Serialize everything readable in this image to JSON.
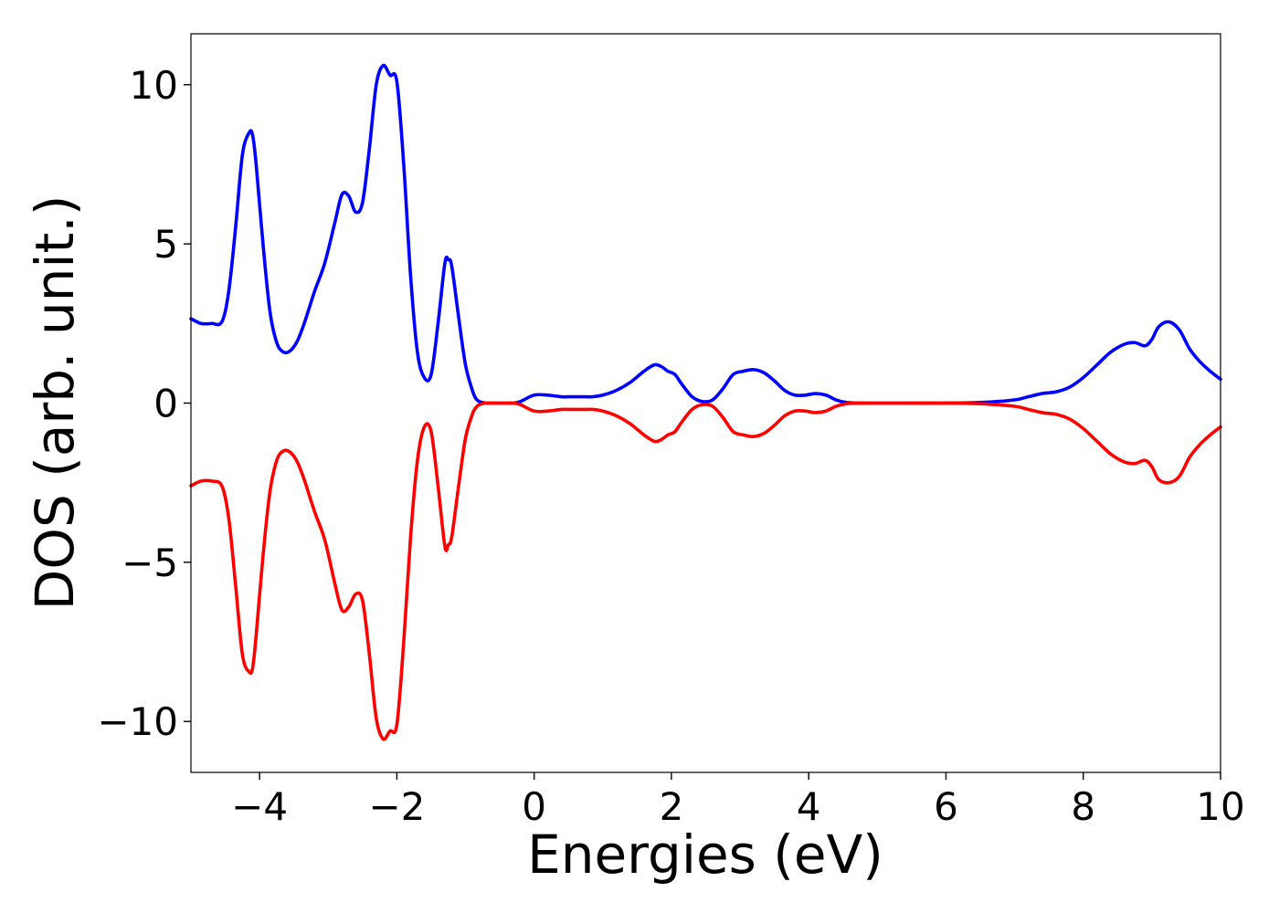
{
  "chart_data": {
    "type": "line",
    "title": "",
    "xlabel": "Energies (eV)",
    "ylabel": "DOS (arb. unit.)",
    "xlim": [
      -5,
      10
    ],
    "ylim": [
      -11.6,
      11.6
    ],
    "xticks": [
      -4,
      -2,
      0,
      2,
      4,
      6,
      8,
      10
    ],
    "xtick_labels": [
      "−4",
      "−2",
      "0",
      "2",
      "4",
      "6",
      "8",
      "10"
    ],
    "yticks": [
      -10,
      -5,
      0,
      5,
      10
    ],
    "ytick_labels": [
      "−10",
      "−5",
      "0",
      "5",
      "10"
    ],
    "grid": false,
    "legend": "none",
    "series": [
      {
        "color": "#0000ff",
        "x": [
          -5.0,
          -4.85,
          -4.7,
          -4.55,
          -4.45,
          -4.35,
          -4.25,
          -4.15,
          -4.1,
          -4.05,
          -3.95,
          -3.85,
          -3.75,
          -3.65,
          -3.55,
          -3.45,
          -3.35,
          -3.2,
          -3.05,
          -2.9,
          -2.8,
          -2.7,
          -2.6,
          -2.5,
          -2.4,
          -2.3,
          -2.2,
          -2.1,
          -2.0,
          -1.9,
          -1.8,
          -1.7,
          -1.6,
          -1.5,
          -1.4,
          -1.3,
          -1.25,
          -1.2,
          -1.1,
          -1.0,
          -0.9,
          -0.85,
          -0.8,
          -0.7,
          -0.6,
          -0.5,
          -0.4,
          -0.3,
          -0.2,
          0.0,
          0.2,
          0.4,
          0.55,
          0.7,
          0.85,
          1.0,
          1.2,
          1.4,
          1.6,
          1.75,
          1.85,
          1.95,
          2.05,
          2.15,
          2.3,
          2.45,
          2.6,
          2.75,
          2.9,
          3.05,
          3.2,
          3.35,
          3.5,
          3.65,
          3.8,
          3.95,
          4.1,
          4.25,
          4.4,
          4.55,
          4.7,
          4.85,
          5.0,
          5.5,
          6.0,
          6.5,
          7.0,
          7.2,
          7.4,
          7.6,
          7.8,
          8.0,
          8.2,
          8.4,
          8.6,
          8.75,
          8.9,
          9.0,
          9.1,
          9.25,
          9.4,
          9.55,
          9.7,
          9.85,
          10.0
        ],
        "y": [
          2.65,
          2.5,
          2.5,
          2.55,
          3.5,
          5.5,
          7.8,
          8.5,
          8.4,
          7.5,
          5.0,
          2.9,
          1.9,
          1.6,
          1.65,
          1.95,
          2.5,
          3.5,
          4.4,
          5.7,
          6.55,
          6.5,
          6.0,
          6.3,
          8.0,
          10.0,
          10.6,
          10.3,
          10.1,
          7.5,
          4.0,
          1.6,
          0.8,
          0.9,
          2.5,
          4.4,
          4.5,
          4.3,
          2.7,
          1.2,
          0.4,
          0.15,
          0.05,
          0.0,
          0.0,
          0.0,
          0.0,
          0.0,
          0.05,
          0.25,
          0.25,
          0.2,
          0.2,
          0.2,
          0.2,
          0.25,
          0.4,
          0.65,
          1.0,
          1.2,
          1.15,
          1.0,
          0.9,
          0.6,
          0.2,
          0.05,
          0.1,
          0.45,
          0.9,
          1.0,
          1.05,
          0.95,
          0.7,
          0.4,
          0.25,
          0.25,
          0.3,
          0.25,
          0.1,
          0.02,
          0.0,
          0.0,
          0.0,
          0.0,
          0.0,
          0.02,
          0.1,
          0.2,
          0.3,
          0.35,
          0.5,
          0.8,
          1.2,
          1.6,
          1.85,
          1.9,
          1.8,
          2.0,
          2.4,
          2.55,
          2.3,
          1.7,
          1.3,
          1.0,
          0.75
        ]
      },
      {
        "color": "#ff0000",
        "x": [
          -5.0,
          -4.85,
          -4.7,
          -4.55,
          -4.45,
          -4.35,
          -4.25,
          -4.15,
          -4.1,
          -4.05,
          -3.95,
          -3.85,
          -3.75,
          -3.65,
          -3.55,
          -3.45,
          -3.35,
          -3.2,
          -3.05,
          -2.9,
          -2.8,
          -2.7,
          -2.6,
          -2.5,
          -2.4,
          -2.3,
          -2.2,
          -2.1,
          -2.0,
          -1.9,
          -1.8,
          -1.7,
          -1.6,
          -1.5,
          -1.4,
          -1.3,
          -1.25,
          -1.2,
          -1.1,
          -1.0,
          -0.9,
          -0.85,
          -0.8,
          -0.7,
          -0.6,
          -0.5,
          -0.4,
          -0.3,
          -0.2,
          0.0,
          0.2,
          0.4,
          0.55,
          0.7,
          0.85,
          1.0,
          1.2,
          1.4,
          1.6,
          1.75,
          1.85,
          1.95,
          2.05,
          2.15,
          2.3,
          2.45,
          2.6,
          2.75,
          2.9,
          3.05,
          3.2,
          3.35,
          3.5,
          3.65,
          3.8,
          3.95,
          4.1,
          4.25,
          4.4,
          4.55,
          4.7,
          4.85,
          5.0,
          5.5,
          6.0,
          6.5,
          7.0,
          7.2,
          7.4,
          7.6,
          7.8,
          8.0,
          8.2,
          8.4,
          8.6,
          8.75,
          8.9,
          9.0,
          9.1,
          9.25,
          9.4,
          9.55,
          9.7,
          9.85,
          10.0
        ],
        "y": [
          -2.6,
          -2.45,
          -2.45,
          -2.6,
          -3.6,
          -5.7,
          -7.9,
          -8.45,
          -8.3,
          -7.3,
          -4.8,
          -2.8,
          -1.8,
          -1.5,
          -1.55,
          -1.85,
          -2.4,
          -3.4,
          -4.3,
          -5.7,
          -6.5,
          -6.4,
          -6.0,
          -6.2,
          -7.9,
          -9.9,
          -10.55,
          -10.3,
          -10.1,
          -7.5,
          -4.2,
          -1.8,
          -0.75,
          -0.9,
          -2.6,
          -4.5,
          -4.45,
          -4.2,
          -2.6,
          -1.1,
          -0.35,
          -0.15,
          -0.05,
          0.0,
          0.0,
          0.0,
          0.0,
          0.0,
          -0.05,
          -0.25,
          -0.25,
          -0.2,
          -0.2,
          -0.2,
          -0.2,
          -0.25,
          -0.4,
          -0.65,
          -1.0,
          -1.2,
          -1.15,
          -1.0,
          -0.9,
          -0.6,
          -0.2,
          -0.05,
          -0.1,
          -0.45,
          -0.9,
          -1.0,
          -1.05,
          -0.95,
          -0.7,
          -0.4,
          -0.25,
          -0.25,
          -0.3,
          -0.25,
          -0.1,
          -0.02,
          0.0,
          0.0,
          0.0,
          0.0,
          0.0,
          -0.02,
          -0.1,
          -0.2,
          -0.3,
          -0.35,
          -0.5,
          -0.8,
          -1.2,
          -1.6,
          -1.85,
          -1.9,
          -1.8,
          -2.0,
          -2.4,
          -2.5,
          -2.3,
          -1.7,
          -1.3,
          -1.0,
          -0.75
        ]
      }
    ]
  }
}
